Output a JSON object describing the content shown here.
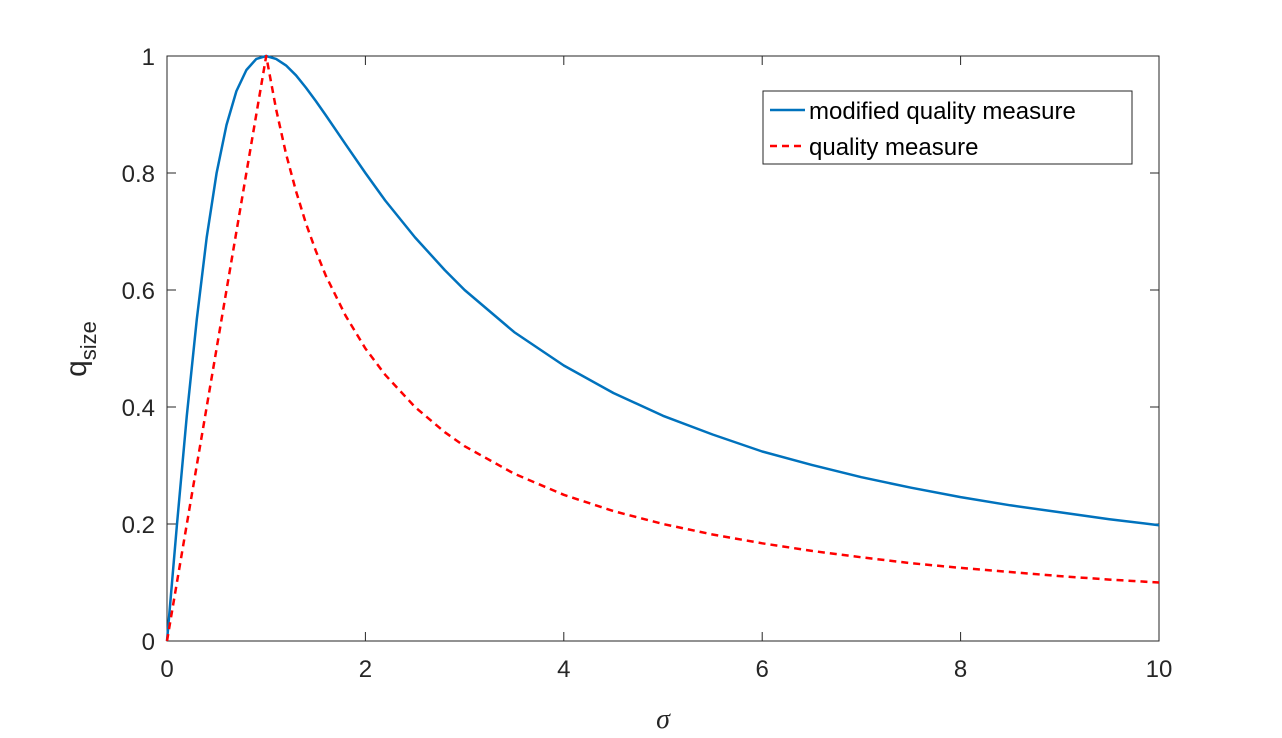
{
  "chart_data": {
    "type": "line",
    "title": "",
    "xlabel": "σ",
    "ylabel": "q",
    "ylabel_subscript": "size",
    "xlim": [
      0,
      10
    ],
    "ylim": [
      0,
      1
    ],
    "xticks": [
      0,
      2,
      4,
      6,
      8,
      10
    ],
    "yticks": [
      0,
      0.2,
      0.4,
      0.6,
      0.8,
      1
    ],
    "xtick_labels": [
      "0",
      "2",
      "4",
      "6",
      "8",
      "10"
    ],
    "ytick_labels": [
      "0",
      "0.2",
      "0.4",
      "0.6",
      "0.8",
      "1"
    ],
    "grid": false,
    "legend_position": "top-right",
    "series": [
      {
        "name": "modified quality measure",
        "color": "#0072bd",
        "style": "solid",
        "x": [
          0,
          0.05,
          0.1,
          0.2,
          0.3,
          0.4,
          0.5,
          0.6,
          0.7,
          0.8,
          0.9,
          1.0,
          1.1,
          1.2,
          1.3,
          1.4,
          1.5,
          1.6,
          1.8,
          2.0,
          2.2,
          2.5,
          2.8,
          3.0,
          3.5,
          4.0,
          4.5,
          5.0,
          5.5,
          6.0,
          6.5,
          7.0,
          7.5,
          8.0,
          8.5,
          9.0,
          9.5,
          10.0
        ],
        "y": [
          0,
          0.0998,
          0.198,
          0.385,
          0.55,
          0.69,
          0.8,
          0.882,
          0.94,
          0.976,
          0.995,
          1.0,
          0.995,
          0.984,
          0.967,
          0.946,
          0.923,
          0.899,
          0.849,
          0.8,
          0.753,
          0.69,
          0.634,
          0.6,
          0.528,
          0.471,
          0.424,
          0.385,
          0.353,
          0.324,
          0.301,
          0.28,
          0.262,
          0.246,
          0.232,
          0.22,
          0.208,
          0.198
        ]
      },
      {
        "name": "quality measure",
        "color": "#ff0000",
        "style": "dashed",
        "x": [
          0,
          1.0,
          1.1,
          1.2,
          1.3,
          1.4,
          1.5,
          1.6,
          1.8,
          2.0,
          2.2,
          2.5,
          2.8,
          3.0,
          3.5,
          4.0,
          4.5,
          5.0,
          5.5,
          6.0,
          6.5,
          7.0,
          7.5,
          8.0,
          8.5,
          9.0,
          9.5,
          10.0
        ],
        "y": [
          0,
          1.0,
          0.909,
          0.833,
          0.769,
          0.714,
          0.667,
          0.625,
          0.556,
          0.5,
          0.455,
          0.4,
          0.357,
          0.333,
          0.286,
          0.25,
          0.222,
          0.2,
          0.182,
          0.167,
          0.154,
          0.143,
          0.133,
          0.125,
          0.118,
          0.111,
          0.105,
          0.1
        ]
      }
    ]
  }
}
